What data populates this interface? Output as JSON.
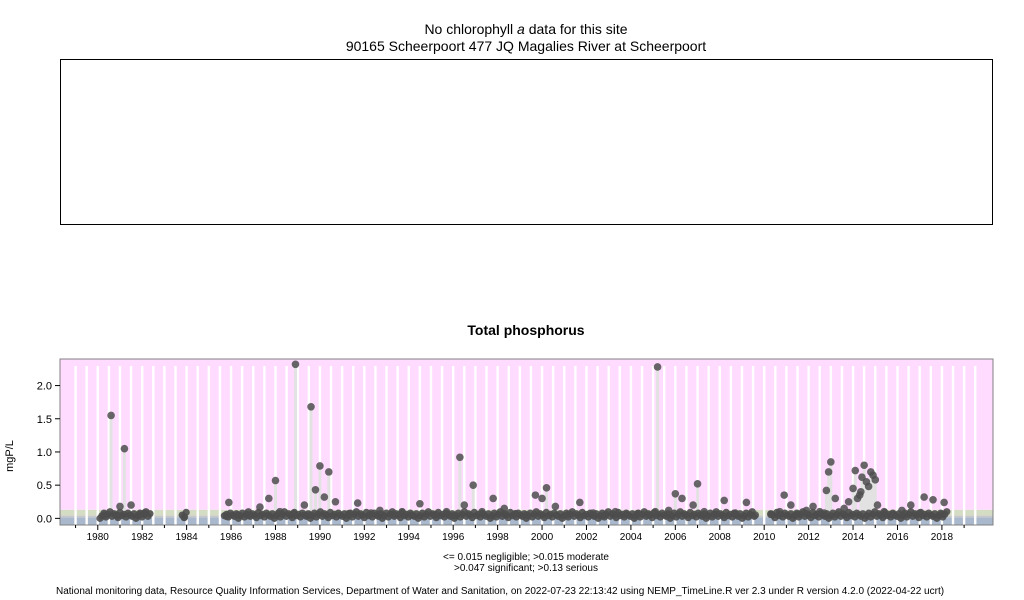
{
  "header": {
    "no_data_prefix": "No chlorophyll",
    "no_data_italic": "a",
    "no_data_suffix": "data for this site",
    "site": "90165 Scheerpoort 477 JQ Magalies River at Scheerpoort"
  },
  "legend": {
    "line1": "<= 0.015 negligible; >0.015 moderate",
    "line2": ">0.047 significant; >0.13 serious"
  },
  "footer": "National monitoring data, Resource Quality Information Services, Department of Water and Sanitation, on 2022-07-23 22:13:42 using NEMP_TimeLine.R ver 2.3 under R version 4.2.0 (2022-04-22 ucrt)",
  "chart_data": {
    "type": "scatter",
    "title": "Total phosphorus",
    "ylabel": "mgP/L",
    "xlabel": "",
    "xlim": [
      1978.3,
      1980.3,
      2020.3
    ],
    "ylim": [
      -0.1,
      2.4
    ],
    "xticks": [
      1980,
      1982,
      1984,
      1986,
      1988,
      1990,
      1992,
      1994,
      1996,
      1998,
      2000,
      2002,
      2004,
      2006,
      2008,
      2010,
      2012,
      2014,
      2016,
      2018
    ],
    "yticks": [
      0.0,
      0.5,
      1.0,
      1.5,
      2.0
    ],
    "ytick_labels": [
      "0.0",
      "0.5",
      "1.0",
      "1.5",
      "2.0"
    ],
    "thresholds": [
      {
        "name": "negligible",
        "max": 0.015,
        "color": "#a9b8cc"
      },
      {
        "name": "moderate",
        "max": 0.047,
        "color": "#c8c8c8"
      },
      {
        "name": "significant",
        "max": 0.13,
        "color": "#d4dcc4"
      },
      {
        "name": "serious",
        "max": 2.4,
        "color": "#ffdcff"
      }
    ],
    "colors": {
      "point": "#4d4d4d",
      "spike": "#e2e2e2",
      "stripe": "#ffffff"
    },
    "x": [
      1980.3,
      1980.6,
      1980.9,
      1981.0,
      1981.2,
      1981.5,
      1981.9,
      1982.1,
      1983.9,
      1985.8,
      1985.9,
      1986.3,
      1986.8,
      1987.3,
      1987.7,
      1988.0,
      1988.2,
      1988.8,
      1988.9,
      1989.3,
      1989.5,
      1989.6,
      1989.8,
      1990.0,
      1990.2,
      1990.4,
      1990.7,
      1991.3,
      1991.7,
      1992.3,
      1992.7,
      1993.3,
      1993.7,
      1994.1,
      1994.5,
      1995.2,
      1995.7,
      1996.0,
      1996.3,
      1996.5,
      1996.9,
      1997.3,
      1997.8,
      1998.3,
      1998.8,
      1999.3,
      1999.7,
      2000.0,
      2000.2,
      2000.6,
      2001.2,
      2001.7,
      2002.3,
      2002.8,
      2003.3,
      2003.8,
      2004.3,
      2004.8,
      2005.1,
      2005.2,
      2005.7,
      2006.0,
      2006.3,
      2006.8,
      2007.0,
      2007.3,
      2007.8,
      2008.2,
      2008.7,
      2009.2,
      2009.6,
      2010.3,
      2010.7,
      2010.9,
      2011.2,
      2011.5,
      2011.9,
      2012.2,
      2012.5,
      2012.7,
      2012.8,
      2012.9,
      2013.0,
      2013.2,
      2013.6,
      2013.8,
      2014.0,
      2014.1,
      2014.2,
      2014.3,
      2014.35,
      2014.4,
      2014.5,
      2014.6,
      2014.7,
      2014.8,
      2014.9,
      2015.0,
      2015.1,
      2015.4,
      2015.8,
      2016.2,
      2016.6,
      2017.0,
      2017.2,
      2017.6,
      2018.0,
      2018.1
    ],
    "values": [
      0.05,
      1.55,
      0.04,
      0.18,
      1.05,
      0.2,
      0.06,
      0.08,
      0.02,
      0.03,
      0.24,
      0.05,
      0.04,
      0.17,
      0.3,
      0.57,
      0.1,
      0.07,
      2.32,
      0.2,
      0.05,
      1.68,
      0.43,
      0.79,
      0.32,
      0.7,
      0.25,
      0.07,
      0.23,
      0.08,
      0.12,
      0.06,
      0.1,
      0.05,
      0.22,
      0.06,
      0.1,
      0.04,
      0.92,
      0.2,
      0.5,
      0.1,
      0.3,
      0.15,
      0.07,
      0.05,
      0.35,
      0.3,
      0.46,
      0.18,
      0.06,
      0.24,
      0.08,
      0.05,
      0.1,
      0.06,
      0.07,
      0.05,
      0.1,
      2.28,
      0.12,
      0.37,
      0.3,
      0.2,
      0.52,
      0.1,
      0.06,
      0.27,
      0.08,
      0.24,
      0.05,
      0.06,
      0.1,
      0.35,
      0.2,
      0.06,
      0.12,
      0.18,
      0.1,
      0.08,
      0.42,
      0.7,
      0.85,
      0.3,
      0.15,
      0.25,
      0.45,
      0.72,
      0.3,
      0.35,
      0.4,
      0.62,
      0.8,
      0.55,
      0.48,
      0.7,
      0.65,
      0.58,
      0.2,
      0.1,
      0.06,
      0.12,
      0.2,
      0.08,
      0.32,
      0.28,
      0.06,
      0.24
    ],
    "baseline": {
      "segments": [
        [
          1980.1,
          1982.4
        ],
        [
          1983.8,
          1984.0
        ],
        [
          1985.7,
          2009.6
        ],
        [
          2010.3,
          2018.3
        ]
      ],
      "values": [
        0.0,
        0.04,
        0.08,
        0.02,
        0.06,
        0.1,
        0.03,
        0.07,
        0.05,
        0.01,
        0.09,
        0.04,
        0.06,
        0.02,
        0.08,
        0.05,
        0.03,
        0.07
      ]
    }
  }
}
